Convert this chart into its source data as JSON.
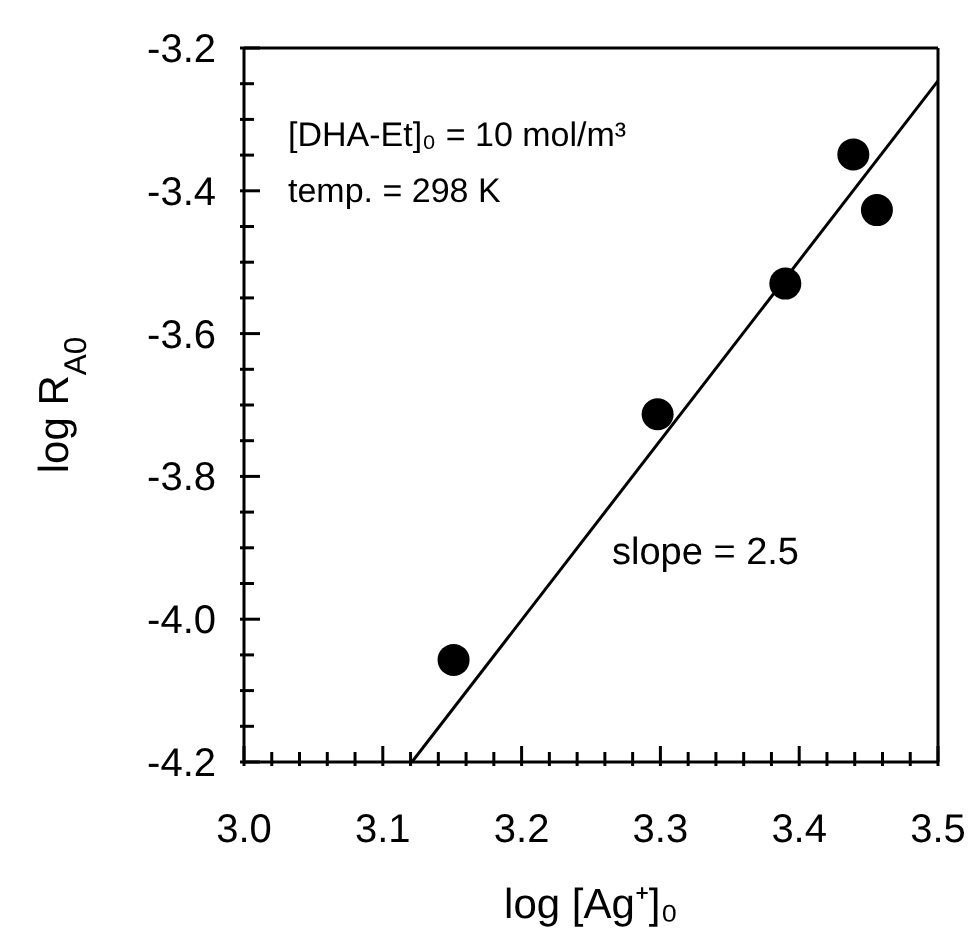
{
  "chart_data": {
    "type": "scatter",
    "xlabel": "log [Ag⁺]₀",
    "ylabel": "log R$_{A0}$",
    "annotations": [
      "[DHA-Et]₀ = 10 mol/m³",
      "temp. = 298 K",
      "slope = 2.5"
    ],
    "series": [
      {
        "color": "#000000",
        "x": [
          3.151,
          3.298,
          3.39,
          3.439,
          3.456
        ],
        "values": [
          -4.057,
          -3.713,
          -3.53,
          -3.349,
          -3.427
        ],
        "marker": "circle"
      },
      {
        "type": "line",
        "color": "#000000",
        "x": [
          3.121,
          3.5
        ],
        "values": [
          -4.2,
          -3.246
        ],
        "marker": "none",
        "line_style": "solid"
      }
    ],
    "xlim": [
      3.0,
      3.5
    ],
    "xticks": [
      {
        "value": 3.0,
        "label": "3.0"
      },
      {
        "value": 3.02,
        "label": null
      },
      {
        "value": 3.04,
        "label": null
      },
      {
        "value": 3.06,
        "label": null
      },
      {
        "value": 3.08,
        "label": null
      },
      3.1,
      {
        "value": 3.12,
        "label": null
      },
      {
        "value": 3.14,
        "label": null
      },
      {
        "value": 3.16,
        "label": null
      },
      {
        "value": 3.18,
        "label": null
      },
      3.2,
      {
        "value": 3.22,
        "label": null
      },
      {
        "value": 3.24,
        "label": null
      },
      {
        "value": 3.26,
        "label": null
      },
      {
        "value": 3.28,
        "label": null
      },
      3.3,
      {
        "value": 3.32,
        "label": null
      },
      {
        "value": 3.34,
        "label": null
      },
      {
        "value": 3.36,
        "label": null
      },
      {
        "value": 3.38,
        "label": null
      },
      3.4,
      {
        "value": 3.42,
        "label": null
      },
      {
        "value": 3.44,
        "label": null
      },
      {
        "value": 3.46,
        "label": null
      },
      {
        "value": 3.48,
        "label": null
      },
      3.5
    ],
    "ylim": [
      -4.2,
      -3.2
    ],
    "yticks": [
      -4.2,
      {
        "value": -4.15,
        "label": null
      },
      {
        "value": -4.1,
        "label": null
      },
      {
        "value": -4.05,
        "label": null
      },
      {
        "value": -4.0,
        "label": "-4.0"
      },
      {
        "value": -3.95,
        "label": null
      },
      {
        "value": -3.9,
        "label": null
      },
      {
        "value": -3.85,
        "label": null
      },
      -3.8,
      {
        "value": -3.75,
        "label": null
      },
      {
        "value": -3.7,
        "label": null
      },
      {
        "value": -3.65,
        "label": null
      },
      -3.6,
      {
        "value": -3.55,
        "label": null
      },
      {
        "value": -3.5,
        "label": null
      },
      {
        "value": -3.45,
        "label": null
      },
      -3.4,
      {
        "value": -3.35,
        "label": null
      },
      {
        "value": -3.3,
        "label": null
      },
      {
        "value": -3.25,
        "label": null
      },
      -3.2
    ],
    "legend": false
  }
}
